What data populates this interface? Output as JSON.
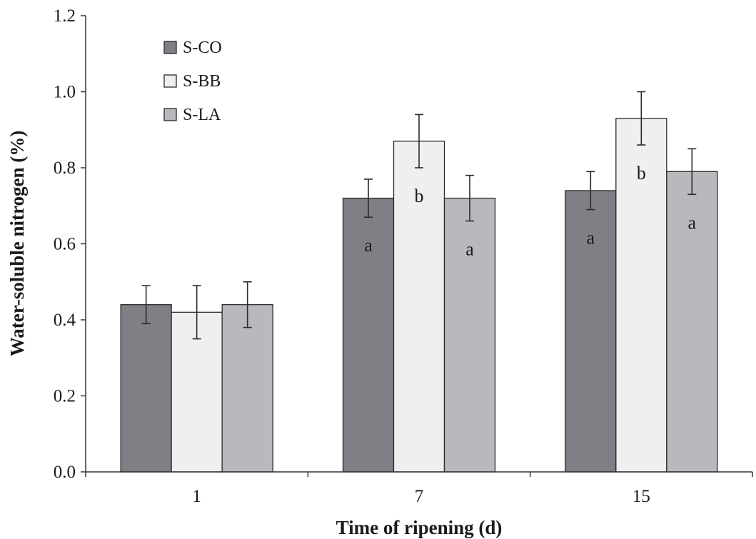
{
  "chart_data": {
    "type": "bar",
    "title": "",
    "xlabel": "Time of ripening (d)",
    "ylabel": "Water-soluble nitrogen (%)",
    "ylim": [
      0,
      1.2
    ],
    "yticks": [
      "0.0",
      "0.2",
      "0.4",
      "0.6",
      "0.8",
      "1.0",
      "1.2"
    ],
    "ytick_values": [
      0,
      0.2,
      0.4,
      0.6,
      0.8,
      1.0,
      1.2
    ],
    "categories": [
      "1",
      "7",
      "15"
    ],
    "legend_position": "top-left",
    "grid": false,
    "series": [
      {
        "name": "S-CO",
        "color": "#7f8085",
        "values": [
          0.44,
          0.72,
          0.74
        ],
        "errors": [
          0.05,
          0.05,
          0.05
        ],
        "labels": [
          "",
          "a",
          "a"
        ]
      },
      {
        "name": "S-BB",
        "color": "#efefef",
        "values": [
          0.42,
          0.87,
          0.93
        ],
        "errors": [
          0.07,
          0.07,
          0.07
        ],
        "labels": [
          "",
          "b",
          "b"
        ]
      },
      {
        "name": "S-LA",
        "color": "#b8b9bd",
        "values": [
          0.44,
          0.72,
          0.79
        ],
        "errors": [
          0.06,
          0.06,
          0.06
        ],
        "labels": [
          "",
          "a",
          "a"
        ]
      }
    ]
  }
}
